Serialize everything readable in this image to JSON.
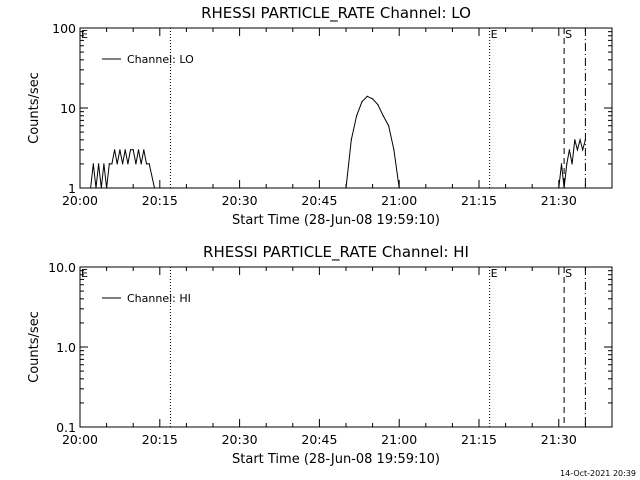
{
  "timestamp": "14-Oct-2021 20:39",
  "colors": {
    "background": "#ffffff",
    "foreground": "#000000"
  },
  "chart_data": [
    {
      "type": "line",
      "title": "RHESSI PARTICLE_RATE Channel: LO",
      "xlabel": "Start Time (28-Jun-08 19:59:10)",
      "ylabel": "Counts/sec",
      "yscale": "log",
      "ylim": [
        1,
        100
      ],
      "xlim_minutes": [
        0,
        100
      ],
      "x_tick_labels": [
        "20:00",
        "20:15",
        "20:30",
        "20:45",
        "21:00",
        "21:15",
        "21:30"
      ],
      "y_tick_labels": [
        "1",
        "10",
        "100"
      ],
      "legend": {
        "placement": "top-left",
        "entries": [
          "Channel: LO"
        ]
      },
      "flag_labels": [
        "E",
        "E",
        "S"
      ],
      "marker_lines": [
        {
          "time": "20:17",
          "style": "dotted"
        },
        {
          "time": "21:17",
          "style": "dotted"
        },
        {
          "time": "21:31",
          "style": "dashed"
        },
        {
          "time": "21:35",
          "style": "dash-dot"
        }
      ],
      "series": [
        {
          "name": "Channel: LO",
          "x": [
            "20:02",
            "20:02:30",
            "20:03",
            "20:03:30",
            "20:04",
            "20:04:30",
            "20:05",
            "20:05:30",
            "20:06",
            "20:06:30",
            "20:07",
            "20:07:30",
            "20:08",
            "20:08:30",
            "20:09",
            "20:09:30",
            "20:10",
            "20:10:30",
            "20:11",
            "20:11:30",
            "20:12",
            "20:12:30",
            "20:13",
            "20:14",
            "20:50",
            "20:51",
            "20:52",
            "20:53",
            "20:54",
            "20:55",
            "20:56",
            "20:57",
            "20:58",
            "20:59",
            "21:00",
            "21:30",
            "21:30:30",
            "21:31",
            "21:31:30",
            "21:32",
            "21:32:30",
            "21:33",
            "21:33:30",
            "21:34",
            "21:34:30",
            "21:35"
          ],
          "y": [
            1,
            2,
            1,
            2,
            1,
            2,
            1,
            2,
            2,
            3,
            2,
            3,
            2,
            3,
            2,
            3,
            3,
            2,
            3,
            2,
            3,
            2,
            2,
            1,
            1,
            4,
            8,
            12,
            14,
            13,
            11,
            8,
            6,
            3,
            1,
            1,
            2,
            1,
            2,
            3,
            2,
            4,
            3,
            4,
            3,
            4
          ]
        }
      ]
    },
    {
      "type": "line",
      "title": "RHESSI PARTICLE_RATE Channel: HI",
      "xlabel": "Start Time (28-Jun-08 19:59:10)",
      "ylabel": "Counts/sec",
      "yscale": "log",
      "ylim": [
        0.1,
        10
      ],
      "xlim_minutes": [
        0,
        100
      ],
      "x_tick_labels": [
        "20:00",
        "20:15",
        "20:30",
        "20:45",
        "21:00",
        "21:15",
        "21:30"
      ],
      "y_tick_labels": [
        "0.1",
        "1.0",
        "10.0"
      ],
      "legend": {
        "placement": "top-left",
        "entries": [
          "Channel: HI"
        ]
      },
      "flag_labels": [
        "E",
        "E",
        "S"
      ],
      "marker_lines": [
        {
          "time": "20:17",
          "style": "dotted"
        },
        {
          "time": "21:17",
          "style": "dotted"
        },
        {
          "time": "21:31",
          "style": "dashed"
        },
        {
          "time": "21:35",
          "style": "dash-dot"
        }
      ],
      "series": [
        {
          "name": "Channel: HI",
          "x": [],
          "y": []
        }
      ]
    }
  ]
}
